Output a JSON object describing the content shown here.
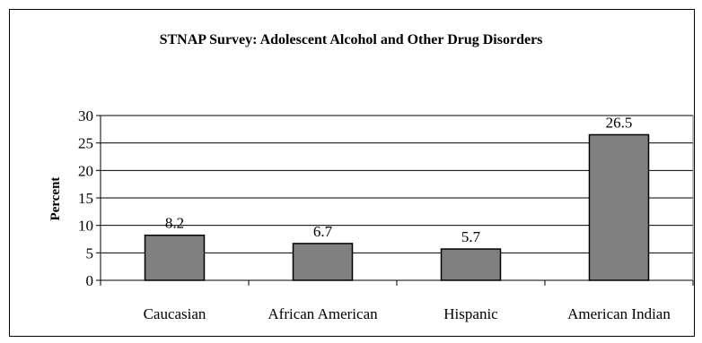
{
  "chart_data": {
    "type": "bar",
    "title": "STNAP Survey: Adolescent Alcohol and Other Drug Disorders",
    "xlabel": "",
    "ylabel": "Percent",
    "categories": [
      "Caucasian",
      "African American",
      "Hispanic",
      "American Indian"
    ],
    "values": [
      8.2,
      6.7,
      5.7,
      26.5
    ],
    "data_labels": [
      "8.2",
      "6.7",
      "5.7",
      "26.5"
    ],
    "ylim": [
      0,
      30
    ],
    "yticks": [
      "0",
      "5",
      "10",
      "15",
      "20",
      "25",
      "30"
    ],
    "grid": "horizontal",
    "legend": "none",
    "colors": {
      "bar": "#808080",
      "bar_stroke": "#000000",
      "grid": "#000000",
      "background": "#ffffff"
    }
  }
}
